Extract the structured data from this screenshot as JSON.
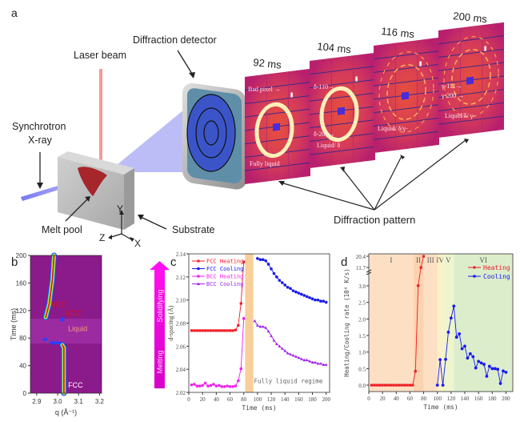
{
  "panel_a": {
    "panel_label": "a",
    "labels": {
      "laser_beam": "Laser beam",
      "diffraction_detector": "Diffraction detector",
      "synchrotron": "Synchrotron",
      "xray": "X-ray",
      "melt_pool": "Melt pool",
      "substrate": "Substrate",
      "diffraction_pattern": "Diffraction pattern",
      "axis_y": "Y",
      "axis_z": "Z",
      "axis_x": "X"
    },
    "patterns": [
      {
        "time": "92 ms",
        "annotations": [
          "Bad pixel →",
          "Fully liquid"
        ]
      },
      {
        "time": "104 ms",
        "annotations": [
          "δ-110→",
          "δ-200→",
          "Liquid/ δ"
        ]
      },
      {
        "time": "116 ms",
        "annotations": [
          "Liquid/ δ/γ-"
        ]
      },
      {
        "time": "200 ms",
        "annotations": [
          "γ-111→",
          "γ-200 →",
          "Liquid/δ/ γ-"
        ]
      }
    ],
    "colors": {
      "pattern_bg": "#c8246e",
      "ring": "#ffe7a8",
      "beam": "#8b8bf0",
      "laser": "#f28b8b",
      "melt": "#a3151c",
      "substrate": "#c8c8c8",
      "detector": "#3b55c9"
    }
  },
  "chart_data": [
    {
      "panel": "b",
      "type": "heatmap",
      "title": "",
      "xlabel": "q (Å⁻¹)",
      "ylabel": "Time (ms)",
      "xlim": [
        2.87,
        3.21
      ],
      "ylim": [
        0,
        200
      ],
      "xticks": [
        "2.9",
        "3.0",
        "3.1",
        "3.2"
      ],
      "yticks": [
        "0",
        "40",
        "80",
        "120",
        "160",
        "200"
      ],
      "annotations": [
        {
          "text": "FCC",
          "x": 3.05,
          "y": 8,
          "color": "#ffffff"
        },
        {
          "text": "FCC",
          "x": 2.97,
          "y": 125,
          "color": "#e0101a"
        },
        {
          "text": "BCC",
          "x": 3.04,
          "y": 113,
          "color": "#e0101a"
        },
        {
          "text": "Liquid",
          "x": 3.05,
          "y": 90,
          "color": "#f0a070"
        }
      ],
      "peaks": [
        {
          "name": "FCC heating",
          "q_path": [
            [
              3.03,
              0
            ],
            [
              3.03,
              66
            ],
            [
              3.022,
              70
            ]
          ]
        },
        {
          "name": "FCC cooling",
          "q_path": [
            [
              2.943,
              110
            ],
            [
              2.96,
              130
            ],
            [
              2.975,
              165
            ],
            [
              2.983,
              200
            ]
          ]
        },
        {
          "name": "BCC",
          "q_path": [
            [
              3.022,
              107
            ]
          ]
        },
        {
          "name": "transient",
          "q_path": [
            [
              2.94,
              78
            ],
            [
              2.99,
              73
            ]
          ]
        }
      ],
      "colorbar": {
        "top_label": "Solidifying",
        "bottom_label": "Melting",
        "color": "#ff00e0"
      },
      "colors": {
        "background": "#8b1a8a",
        "band": "#a030a8"
      }
    },
    {
      "panel": "c",
      "type": "scatter",
      "title": "",
      "xlabel": "Time (ms)",
      "ylabel": "d-spacing (Å)",
      "xlim": [
        0,
        205
      ],
      "ylim": [
        2.02,
        2.14
      ],
      "xticks": [
        "0",
        "20",
        "40",
        "60",
        "80",
        "100",
        "120",
        "140",
        "160",
        "180",
        "200"
      ],
      "yticks": [
        "2.02",
        "2.04",
        "2.06",
        "2.08",
        "2.10",
        "2.12",
        "2.14"
      ],
      "legend_position": "top-left",
      "shaded_region": {
        "x0": 82,
        "x1": 94,
        "color": "#f8cf9a"
      },
      "region_label": "Fully liquid regime",
      "series": [
        {
          "name": "FCC Heating",
          "color": "#ee1c24",
          "marker": "square",
          "x": [
            4,
            8,
            12,
            16,
            20,
            24,
            28,
            32,
            36,
            40,
            44,
            48,
            52,
            56,
            60,
            64,
            68,
            72,
            76,
            80
          ],
          "y": [
            2.0735,
            2.0735,
            2.0735,
            2.0735,
            2.0735,
            2.0735,
            2.0735,
            2.0735,
            2.0735,
            2.0735,
            2.0735,
            2.0735,
            2.0735,
            2.0735,
            2.0735,
            2.0735,
            2.074,
            2.078,
            2.097,
            2.133
          ]
        },
        {
          "name": "FCC Cooling",
          "color": "#1a1aee",
          "marker": "circle",
          "x": [
            100,
            104,
            108,
            112,
            116,
            120,
            124,
            128,
            132,
            136,
            140,
            144,
            148,
            152,
            156,
            160,
            164,
            168,
            172,
            176,
            180,
            184,
            188,
            192,
            196,
            200
          ],
          "y": [
            2.136,
            2.135,
            2.135,
            2.134,
            2.131,
            2.127,
            2.123,
            2.12,
            2.117,
            2.115,
            2.113,
            2.111,
            2.11,
            2.108,
            2.107,
            2.106,
            2.105,
            2.104,
            2.103,
            2.102,
            2.101,
            2.1,
            2.1,
            2.099,
            2.099,
            2.098
          ]
        },
        {
          "name": "BCC Heating",
          "color": "#ee22ee",
          "marker": "circle",
          "x": [
            4,
            8,
            12,
            16,
            20,
            24,
            28,
            32,
            36,
            40,
            44,
            48,
            52,
            56,
            60,
            64,
            68,
            72,
            76,
            80
          ],
          "y": [
            2.0265,
            2.027,
            2.0255,
            2.0255,
            2.026,
            2.028,
            2.0255,
            2.026,
            2.027,
            2.0255,
            2.026,
            2.025,
            2.025,
            2.0255,
            2.025,
            2.025,
            2.0255,
            2.03,
            2.0405,
            2.084
          ]
        },
        {
          "name": "BCC Cooling",
          "color": "#a020f0",
          "marker": "triangle",
          "x": [
            96,
            100,
            104,
            108,
            112,
            116,
            120,
            124,
            128,
            132,
            136,
            140,
            144,
            148,
            152,
            156,
            160,
            164,
            168,
            172,
            176,
            180,
            184,
            188,
            192,
            196,
            200
          ],
          "y": [
            2.082,
            2.078,
            2.077,
            2.077,
            2.076,
            2.073,
            2.069,
            2.065,
            2.062,
            2.06,
            2.058,
            2.056,
            2.054,
            2.053,
            2.052,
            2.051,
            2.05,
            2.049,
            2.048,
            2.048,
            2.047,
            2.046,
            2.046,
            2.045,
            2.045,
            2.044,
            2.044
          ]
        }
      ]
    },
    {
      "panel": "d",
      "type": "line",
      "title": "",
      "xlabel": "Time (ms)",
      "ylabel": "Heating/Cooling rate (10⁴ K/s)",
      "xlim": [
        0,
        210
      ],
      "ylim": [
        -0.2,
        3.6
      ],
      "broken_axis": true,
      "xticks": [
        "0",
        "20",
        "40",
        "60",
        "80",
        "100",
        "120",
        "140",
        "160",
        "180",
        "200"
      ],
      "yticks": [
        "0.0",
        "0.5",
        "1.0",
        "1.5",
        "2.0",
        "2.5",
        "3.0",
        "11.7",
        "20.4"
      ],
      "legend_position": "top-right",
      "regions": [
        {
          "label": "I",
          "x0": 0,
          "x1": 65,
          "color": "#fde0c4"
        },
        {
          "label": "II",
          "x0": 65,
          "x1": 80,
          "color": "#fcd3b0"
        },
        {
          "label": "III",
          "x0": 80,
          "x1": 100,
          "color": "#fde0c4"
        },
        {
          "label": "IV",
          "x0": 100,
          "x1": 108,
          "color": "#fbf0c8"
        },
        {
          "label": "V",
          "x0": 108,
          "x1": 124,
          "color": "#eef5cc"
        },
        {
          "label": "VI",
          "x0": 124,
          "x1": 210,
          "color": "#dcedcc"
        }
      ],
      "series": [
        {
          "name": "Heating",
          "color": "#ee1c24",
          "marker": "square",
          "x": [
            4,
            8,
            12,
            16,
            20,
            24,
            28,
            32,
            36,
            40,
            44,
            48,
            52,
            56,
            60,
            64,
            68,
            72,
            76,
            80
          ],
          "y": [
            0,
            0,
            0,
            0,
            0,
            0,
            0,
            0,
            0,
            0,
            0,
            0,
            0,
            0,
            0,
            0,
            0.42,
            3.1,
            11.7,
            20.4
          ]
        },
        {
          "name": "Cooling",
          "color": "#1a1aee",
          "marker": "circle",
          "x": [
            100,
            104,
            108,
            112,
            116,
            120,
            124,
            128,
            132,
            136,
            140,
            144,
            148,
            152,
            156,
            160,
            164,
            168,
            172,
            176,
            180,
            184,
            188,
            192,
            196,
            200
          ],
          "y": [
            0,
            0.77,
            0,
            0.78,
            1.6,
            2.03,
            2.39,
            1.45,
            1.55,
            1.1,
            1.18,
            0.82,
            0.95,
            0.86,
            0.52,
            0.72,
            0.67,
            0.63,
            0.27,
            0.57,
            0.5,
            0.5,
            0.48,
            0.05,
            0.43,
            0.39
          ]
        }
      ]
    }
  ]
}
